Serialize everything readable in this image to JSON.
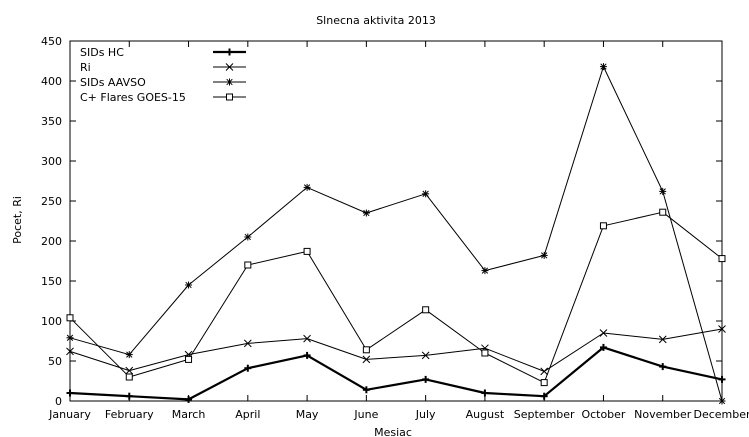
{
  "chart_data": {
    "type": "line",
    "title": "Slnecna aktivita 2013",
    "xlabel": "Mesiac",
    "ylabel": "Pocet, Ri",
    "ylim": [
      0,
      450
    ],
    "yticks": [
      0,
      50,
      100,
      150,
      200,
      250,
      300,
      350,
      400,
      450
    ],
    "grid": false,
    "legend_position": "top-left",
    "categories": [
      "January",
      "February",
      "March",
      "April",
      "May",
      "June",
      "July",
      "August",
      "September",
      "October",
      "November",
      "December"
    ],
    "series": [
      {
        "name": "SIDs HC",
        "marker": "plus",
        "color": "#000000",
        "bold": true,
        "values": [
          10,
          6,
          2,
          41,
          57,
          14,
          27,
          10,
          6,
          67,
          43,
          27
        ]
      },
      {
        "name": "Ri",
        "marker": "x",
        "color": "#000000",
        "bold": false,
        "values": [
          62,
          38,
          58,
          72,
          78,
          52,
          57,
          66,
          37,
          85,
          77,
          90
        ]
      },
      {
        "name": "SIDs AAVSO",
        "marker": "star",
        "color": "#000000",
        "bold": false,
        "values": [
          79,
          58,
          145,
          205,
          267,
          235,
          259,
          163,
          182,
          418,
          262,
          0
        ]
      },
      {
        "name": "C+ Flares GOES-15",
        "marker": "square",
        "color": "#000000",
        "bold": false,
        "values": [
          104,
          30,
          52,
          170,
          187,
          64,
          114,
          60,
          23,
          219,
          236,
          178
        ]
      }
    ]
  }
}
